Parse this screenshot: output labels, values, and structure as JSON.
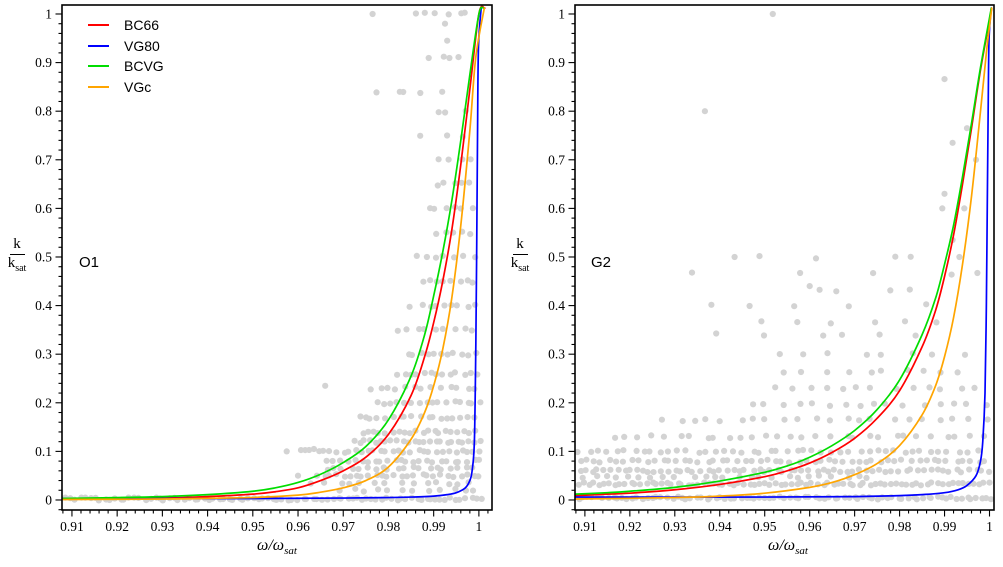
{
  "figure": {
    "bg": "#ffffff",
    "axis_color": "#000000",
    "scatter_color": "#d3d3d3",
    "scatter_radius": 3.1,
    "legend_position": "top-left-of-first-panel",
    "legend": [
      {
        "label": "BC66",
        "color": "#ff0000"
      },
      {
        "label": "VG80",
        "color": "#0000ff"
      },
      {
        "label": "BCVG",
        "color": "#00dd00"
      },
      {
        "label": "VGc",
        "color": "#ffa500"
      }
    ]
  },
  "chart_data": [
    {
      "type": "line+scatter",
      "panel_label": "O1",
      "xlabel": "ω/ω_sat",
      "xlabel_main": "ω/ω",
      "xlabel_sub": "sat",
      "ylabel": "k/k_sat",
      "ylabel_num": "k",
      "ylabel_den": "k",
      "ylabel_den_sub": "sat",
      "xlim": [
        0.9078,
        1.0029
      ],
      "ylim": [
        -0.0206,
        1.0185
      ],
      "grid": false,
      "x_tick_vals": [
        0.91,
        0.92,
        0.93,
        0.94,
        0.95,
        0.96,
        0.97,
        0.98,
        0.99,
        1
      ],
      "x_tick_labels": [
        "0.91",
        "0.92",
        "0.93",
        "0.94",
        "0.95",
        "0.96",
        "0.97",
        "0.98",
        "0.99",
        "1"
      ],
      "x_minor_step": 0.002,
      "y_tick_vals": [
        0,
        0.1,
        0.2,
        0.3,
        0.4,
        0.5,
        0.6,
        0.7,
        0.8,
        0.9,
        1
      ],
      "y_tick_labels": [
        "0",
        "0.1",
        "0.2",
        "0.3",
        "0.4",
        "0.5",
        "0.6",
        "0.7",
        "0.8",
        "0.9",
        "1"
      ],
      "y_minor_step": 0.02,
      "series": [
        {
          "name": "BC66",
          "color": "#ff0000",
          "points": [
            [
              0.908,
              0.002
            ],
            [
              0.92,
              0.003
            ],
            [
              0.93,
              0.004
            ],
            [
              0.94,
              0.007
            ],
            [
              0.95,
              0.012
            ],
            [
              0.955,
              0.017
            ],
            [
              0.96,
              0.025
            ],
            [
              0.965,
              0.04
            ],
            [
              0.97,
              0.06
            ],
            [
              0.975,
              0.088
            ],
            [
              0.98,
              0.135
            ],
            [
              0.985,
              0.215
            ],
            [
              0.988,
              0.295
            ],
            [
              0.99,
              0.365
            ],
            [
              0.992,
              0.45
            ],
            [
              0.994,
              0.555
            ],
            [
              0.996,
              0.69
            ],
            [
              0.998,
              0.845
            ],
            [
              1.0,
              1.0
            ],
            [
              1.0013,
              1.012
            ]
          ]
        },
        {
          "name": "VG80",
          "color": "#0000ff",
          "points": [
            [
              0.908,
              0.003
            ],
            [
              0.95,
              0.003
            ],
            [
              0.97,
              0.004
            ],
            [
              0.98,
              0.005
            ],
            [
              0.985,
              0.006
            ],
            [
              0.99,
              0.008
            ],
            [
              0.993,
              0.011
            ],
            [
              0.995,
              0.015
            ],
            [
              0.997,
              0.025
            ],
            [
              0.998,
              0.04
            ],
            [
              0.9985,
              0.06
            ],
            [
              0.999,
              0.12
            ],
            [
              0.9993,
              0.3
            ],
            [
              0.9995,
              0.5
            ],
            [
              0.9997,
              0.75
            ],
            [
              0.9999,
              0.93
            ],
            [
              1.0005,
              1.012
            ]
          ]
        },
        {
          "name": "BCVG",
          "color": "#00dd00",
          "points": [
            [
              0.908,
              0.003
            ],
            [
              0.92,
              0.005
            ],
            [
              0.93,
              0.007
            ],
            [
              0.94,
              0.011
            ],
            [
              0.95,
              0.018
            ],
            [
              0.955,
              0.025
            ],
            [
              0.96,
              0.036
            ],
            [
              0.965,
              0.053
            ],
            [
              0.97,
              0.077
            ],
            [
              0.975,
              0.11
            ],
            [
              0.98,
              0.165
            ],
            [
              0.985,
              0.255
            ],
            [
              0.988,
              0.34
            ],
            [
              0.99,
              0.42
            ],
            [
              0.992,
              0.51
            ],
            [
              0.994,
              0.615
            ],
            [
              0.996,
              0.74
            ],
            [
              0.998,
              0.875
            ],
            [
              1.0,
              1.0
            ],
            [
              1.0011,
              1.012
            ]
          ]
        },
        {
          "name": "VGc",
          "color": "#ffa500",
          "points": [
            [
              0.908,
              0.001
            ],
            [
              0.93,
              0.002
            ],
            [
              0.95,
              0.005
            ],
            [
              0.96,
              0.01
            ],
            [
              0.965,
              0.016
            ],
            [
              0.97,
              0.025
            ],
            [
              0.975,
              0.04
            ],
            [
              0.98,
              0.068
            ],
            [
              0.985,
              0.125
            ],
            [
              0.988,
              0.18
            ],
            [
              0.99,
              0.235
            ],
            [
              0.992,
              0.31
            ],
            [
              0.994,
              0.415
            ],
            [
              0.996,
              0.565
            ],
            [
              0.998,
              0.76
            ],
            [
              0.9993,
              0.91
            ],
            [
              1.0012,
              1.012
            ]
          ]
        }
      ],
      "scatter_bands": [
        [
          0.002,
          0.908,
          1.001,
          85
        ],
        [
          0.02,
          0.968,
          1.001,
          12
        ],
        [
          0.035,
          0.962,
          1.0,
          14
        ],
        [
          0.05,
          0.9635,
          1.001,
          26
        ],
        [
          0.065,
          0.9655,
          1.0,
          20
        ],
        [
          0.08,
          0.966,
          1.001,
          24
        ],
        [
          0.1,
          0.9595,
          1.001,
          30
        ],
        [
          0.12,
          0.9715,
          1.001,
          24
        ],
        [
          0.14,
          0.9735,
          1.0,
          20
        ],
        [
          0.17,
          0.9725,
          1.0,
          18
        ],
        [
          0.2,
          0.977,
          1.001,
          16
        ],
        [
          0.23,
          0.9755,
          1.0,
          13
        ],
        [
          0.26,
          0.9815,
          1.0,
          13
        ],
        [
          0.3,
          0.9835,
          1.0,
          11
        ],
        [
          0.35,
          0.9815,
          0.9995,
          9
        ],
        [
          0.4,
          0.9845,
          1.0,
          9
        ],
        [
          0.45,
          0.987,
          0.9995,
          8
        ],
        [
          0.5,
          0.9845,
          0.9995,
          7
        ],
        [
          0.55,
          0.9895,
          0.999,
          5
        ],
        [
          0.6,
          0.9875,
          0.9995,
          6
        ],
        [
          0.65,
          0.9895,
          0.999,
          5
        ],
        [
          0.7,
          0.9895,
          0.999,
          4
        ],
        [
          0.75,
          0.9855,
          0.998,
          3
        ],
        [
          0.8,
          0.9885,
          0.999,
          3
        ],
        [
          0.84,
          0.9755,
          0.9965,
          4
        ],
        [
          0.91,
          0.9875,
          0.9975,
          4
        ],
        [
          1.0,
          0.9855,
          0.9985,
          6
        ]
      ],
      "scatter_points": [
        [
          0.9765,
          1.0
        ],
        [
          0.966,
          0.235
        ],
        [
          0.9635,
          0.105
        ],
        [
          0.9575,
          0.1
        ],
        [
          0.993,
          0.945
        ],
        [
          0.9925,
          0.98
        ],
        [
          0.96,
          0.05
        ],
        [
          0.9825,
          0.84
        ]
      ]
    },
    {
      "type": "line+scatter",
      "panel_label": "G2",
      "xlabel": "ω/ω_sat",
      "xlabel_main": "ω/ω",
      "xlabel_sub": "sat",
      "ylabel": "k/k_sat",
      "ylabel_num": "k",
      "ylabel_den": "k",
      "ylabel_den_sub": "sat",
      "xlim": [
        0.9078,
        1.001
      ],
      "ylim": [
        -0.0206,
        1.0185
      ],
      "grid": false,
      "x_tick_vals": [
        0.91,
        0.92,
        0.93,
        0.94,
        0.95,
        0.96,
        0.97,
        0.98,
        0.99,
        1
      ],
      "x_tick_labels": [
        "0.91",
        "0.92",
        "0.93",
        "0.94",
        "0.95",
        "0.96",
        "0.97",
        "0.98",
        "0.99",
        "1"
      ],
      "x_minor_step": 0.002,
      "y_tick_vals": [
        0,
        0.1,
        0.2,
        0.3,
        0.4,
        0.5,
        0.6,
        0.7,
        0.8,
        0.9,
        1
      ],
      "y_tick_labels": [
        "0",
        "0.1",
        "0.2",
        "0.3",
        "0.4",
        "0.5",
        "0.6",
        "0.7",
        "0.8",
        "0.9",
        "1"
      ],
      "y_minor_step": 0.02,
      "series": [
        {
          "name": "BC66",
          "color": "#ff0000",
          "points": [
            [
              0.908,
              0.009
            ],
            [
              0.915,
              0.012
            ],
            [
              0.92,
              0.014
            ],
            [
              0.93,
              0.021
            ],
            [
              0.94,
              0.032
            ],
            [
              0.95,
              0.048
            ],
            [
              0.955,
              0.06
            ],
            [
              0.96,
              0.076
            ],
            [
              0.965,
              0.098
            ],
            [
              0.97,
              0.127
            ],
            [
              0.975,
              0.168
            ],
            [
              0.98,
              0.225
            ],
            [
              0.985,
              0.315
            ],
            [
              0.988,
              0.39
            ],
            [
              0.99,
              0.46
            ],
            [
              0.992,
              0.545
            ],
            [
              0.994,
              0.65
            ],
            [
              0.996,
              0.765
            ],
            [
              0.998,
              0.885
            ],
            [
              1.0005,
              1.012
            ]
          ]
        },
        {
          "name": "VG80",
          "color": "#0000ff",
          "points": [
            [
              0.908,
              0.006
            ],
            [
              0.95,
              0.006
            ],
            [
              0.97,
              0.007
            ],
            [
              0.98,
              0.009
            ],
            [
              0.985,
              0.011
            ],
            [
              0.99,
              0.015
            ],
            [
              0.993,
              0.021
            ],
            [
              0.995,
              0.03
            ],
            [
              0.997,
              0.05
            ],
            [
              0.998,
              0.08
            ],
            [
              0.9985,
              0.12
            ],
            [
              0.999,
              0.22
            ],
            [
              0.9993,
              0.4
            ],
            [
              0.9995,
              0.6
            ],
            [
              0.9997,
              0.8
            ],
            [
              0.9999,
              0.95
            ],
            [
              1.0004,
              1.012
            ]
          ]
        },
        {
          "name": "BCVG",
          "color": "#00dd00",
          "points": [
            [
              0.908,
              0.012
            ],
            [
              0.915,
              0.015
            ],
            [
              0.92,
              0.018
            ],
            [
              0.93,
              0.026
            ],
            [
              0.94,
              0.039
            ],
            [
              0.95,
              0.057
            ],
            [
              0.955,
              0.07
            ],
            [
              0.96,
              0.088
            ],
            [
              0.965,
              0.112
            ],
            [
              0.97,
              0.143
            ],
            [
              0.975,
              0.186
            ],
            [
              0.98,
              0.247
            ],
            [
              0.985,
              0.34
            ],
            [
              0.988,
              0.415
            ],
            [
              0.99,
              0.485
            ],
            [
              0.992,
              0.565
            ],
            [
              0.994,
              0.665
            ],
            [
              0.996,
              0.775
            ],
            [
              0.998,
              0.89
            ],
            [
              1.0004,
              1.012
            ]
          ]
        },
        {
          "name": "VGc",
          "color": "#ffa500",
          "points": [
            [
              0.908,
              0.002
            ],
            [
              0.93,
              0.005
            ],
            [
              0.94,
              0.008
            ],
            [
              0.95,
              0.014
            ],
            [
              0.96,
              0.026
            ],
            [
              0.965,
              0.036
            ],
            [
              0.97,
              0.052
            ],
            [
              0.975,
              0.075
            ],
            [
              0.98,
              0.112
            ],
            [
              0.985,
              0.175
            ],
            [
              0.988,
              0.235
            ],
            [
              0.99,
              0.295
            ],
            [
              0.992,
              0.375
            ],
            [
              0.994,
              0.485
            ],
            [
              0.996,
              0.625
            ],
            [
              0.998,
              0.8
            ],
            [
              0.9993,
              0.92
            ],
            [
              1.0005,
              1.012
            ]
          ]
        }
      ],
      "scatter_bands": [
        [
          0.004,
          0.908,
          1.001,
          85
        ],
        [
          0.033,
          0.908,
          1.0005,
          80
        ],
        [
          0.048,
          0.908,
          0.975,
          25
        ],
        [
          0.06,
          0.908,
          1.0005,
          65
        ],
        [
          0.08,
          0.908,
          1.0,
          55
        ],
        [
          0.1,
          0.908,
          0.998,
          45
        ],
        [
          0.13,
          0.9155,
          1.0,
          30
        ],
        [
          0.165,
          0.9255,
          1.0,
          22
        ],
        [
          0.196,
          0.9455,
          1.0,
          16
        ],
        [
          0.23,
          0.9505,
          0.999,
          13
        ],
        [
          0.265,
          0.9525,
          0.9965,
          10
        ],
        [
          0.3,
          0.9515,
          0.996,
          8
        ],
        [
          0.34,
          0.9375,
          0.9905,
          6
        ],
        [
          0.366,
          0.9475,
          0.9905,
          6
        ],
        [
          0.4,
          0.9315,
          0.991,
          5
        ],
        [
          0.43,
          0.9555,
          0.9895,
          4
        ],
        [
          0.465,
          0.9265,
          0.998,
          4
        ],
        [
          0.5,
          0.9425,
          0.9935,
          4
        ]
      ],
      "scatter_points": [
        [
          0.9518,
          1.0
        ],
        [
          0.99,
          0.866
        ],
        [
          0.9367,
          0.8
        ],
        [
          0.995,
          0.765
        ],
        [
          0.9918,
          0.735
        ],
        [
          0.997,
          0.7
        ],
        [
          0.99,
          0.63
        ],
        [
          0.9944,
          0.6
        ],
        [
          0.9895,
          0.6
        ],
        [
          0.9918,
          0.535
        ],
        [
          0.9973,
          0.467
        ],
        [
          0.96,
          0.44
        ],
        [
          0.9433,
          0.5
        ],
        [
          0.9933,
          0.5
        ]
      ]
    }
  ]
}
